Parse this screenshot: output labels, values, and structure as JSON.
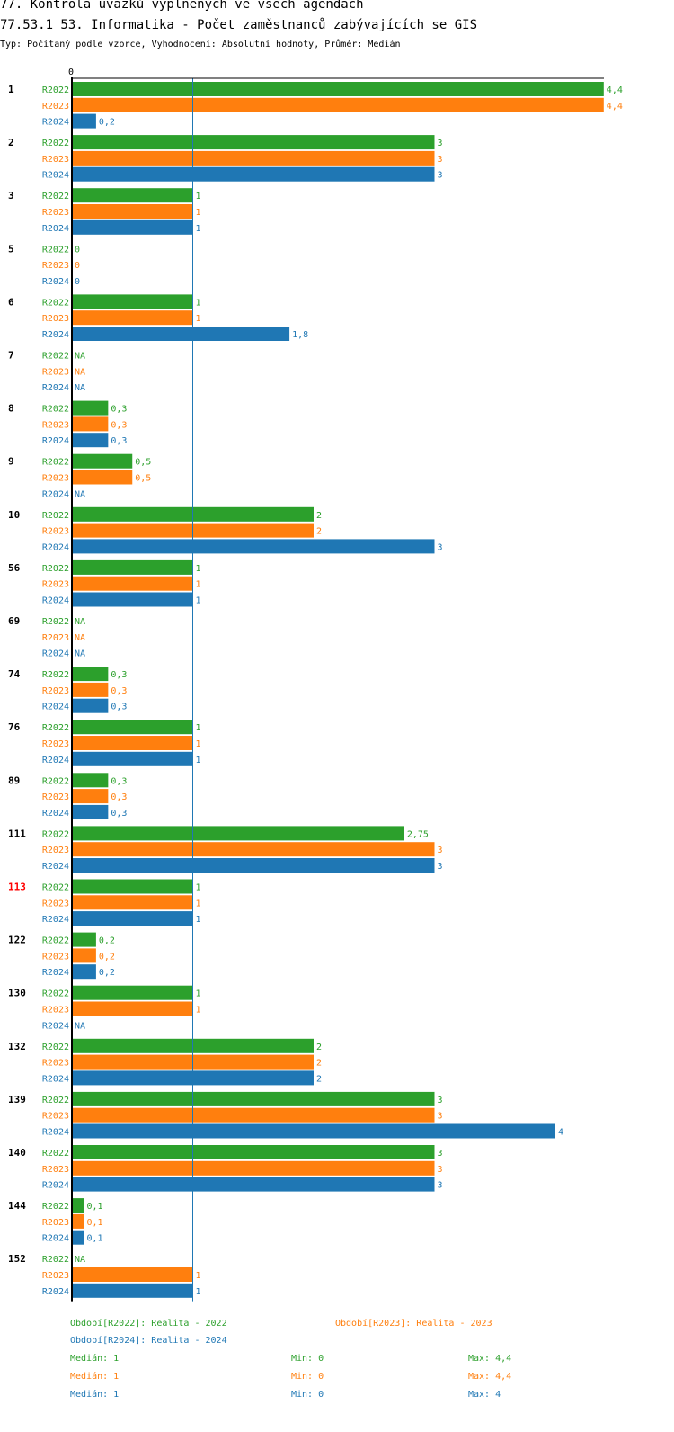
{
  "header": {
    "title": "77. Kontrola úvazků vyplněných ve všech agendách",
    "subtitle": "77.53.1 53. Informatika - Počet zaměstnanců zabývajících se GIS",
    "info": "Typ: Počítaný podle vzorce, Vyhodnocení: Absolutní hodnoty, Průměr: Medián"
  },
  "colors": {
    "R2022": "#2ca02c",
    "R2023": "#ff7f0e",
    "R2024": "#1f77b4",
    "highlight": "#ff0000",
    "median_line": "#1f77b4"
  },
  "chart_data": {
    "type": "bar",
    "orientation": "horizontal",
    "axis_zero_label": "0",
    "median_reference": 1,
    "series_names": [
      "R2022",
      "R2023",
      "R2024"
    ],
    "highlight_category": "113",
    "categories": [
      {
        "id": "1",
        "values": [
          4.4,
          4.4,
          0.2
        ],
        "labels": [
          "4,4",
          "4,4",
          "0,2"
        ]
      },
      {
        "id": "2",
        "values": [
          3,
          3,
          3
        ],
        "labels": [
          "3",
          "3",
          "3"
        ]
      },
      {
        "id": "3",
        "values": [
          1,
          1,
          1
        ],
        "labels": [
          "1",
          "1",
          "1"
        ]
      },
      {
        "id": "5",
        "values": [
          0,
          0,
          0
        ],
        "labels": [
          "0",
          "0",
          "0"
        ]
      },
      {
        "id": "6",
        "values": [
          1,
          1,
          1.8
        ],
        "labels": [
          "1",
          "1",
          "1,8"
        ]
      },
      {
        "id": "7",
        "values": [
          null,
          null,
          null
        ],
        "labels": [
          "NA",
          "NA",
          "NA"
        ]
      },
      {
        "id": "8",
        "values": [
          0.3,
          0.3,
          0.3
        ],
        "labels": [
          "0,3",
          "0,3",
          "0,3"
        ]
      },
      {
        "id": "9",
        "values": [
          0.5,
          0.5,
          null
        ],
        "labels": [
          "0,5",
          "0,5",
          "NA"
        ]
      },
      {
        "id": "10",
        "values": [
          2,
          2,
          3
        ],
        "labels": [
          "2",
          "2",
          "3"
        ]
      },
      {
        "id": "56",
        "values": [
          1,
          1,
          1
        ],
        "labels": [
          "1",
          "1",
          "1"
        ]
      },
      {
        "id": "69",
        "values": [
          null,
          null,
          null
        ],
        "labels": [
          "NA",
          "NA",
          "NA"
        ]
      },
      {
        "id": "74",
        "values": [
          0.3,
          0.3,
          0.3
        ],
        "labels": [
          "0,3",
          "0,3",
          "0,3"
        ]
      },
      {
        "id": "76",
        "values": [
          1,
          1,
          1
        ],
        "labels": [
          "1",
          "1",
          "1"
        ]
      },
      {
        "id": "89",
        "values": [
          0.3,
          0.3,
          0.3
        ],
        "labels": [
          "0,3",
          "0,3",
          "0,3"
        ]
      },
      {
        "id": "111",
        "values": [
          2.75,
          3,
          3
        ],
        "labels": [
          "2,75",
          "3",
          "3"
        ]
      },
      {
        "id": "113",
        "values": [
          1,
          1,
          1
        ],
        "labels": [
          "1",
          "1",
          "1"
        ]
      },
      {
        "id": "122",
        "values": [
          0.2,
          0.2,
          0.2
        ],
        "labels": [
          "0,2",
          "0,2",
          "0,2"
        ]
      },
      {
        "id": "130",
        "values": [
          1,
          1,
          null
        ],
        "labels": [
          "1",
          "1",
          "NA"
        ]
      },
      {
        "id": "132",
        "values": [
          2,
          2,
          2
        ],
        "labels": [
          "2",
          "2",
          "2"
        ]
      },
      {
        "id": "139",
        "values": [
          3,
          3,
          4
        ],
        "labels": [
          "3",
          "3",
          "4"
        ]
      },
      {
        "id": "140",
        "values": [
          3,
          3,
          3
        ],
        "labels": [
          "3",
          "3",
          "3"
        ]
      },
      {
        "id": "144",
        "values": [
          0.1,
          0.1,
          0.1
        ],
        "labels": [
          "0,1",
          "0,1",
          "0,1"
        ]
      },
      {
        "id": "152",
        "values": [
          null,
          1,
          1
        ],
        "labels": [
          "NA",
          "1",
          "1"
        ]
      }
    ]
  },
  "legend": {
    "periods": [
      {
        "text": "Období[R2022]: Realita - 2022"
      },
      {
        "text": "Období[R2023]: Realita - 2023"
      },
      {
        "text": "Období[R2024]: Realita - 2024"
      }
    ],
    "stats": [
      {
        "median": "Medián: 1",
        "min": "Min: 0",
        "max": "Max: 4,4"
      },
      {
        "median": "Medián: 1",
        "min": "Min: 0",
        "max": "Max: 4,4"
      },
      {
        "median": "Medián: 1",
        "min": "Min: 0",
        "max": "Max: 4"
      }
    ]
  }
}
